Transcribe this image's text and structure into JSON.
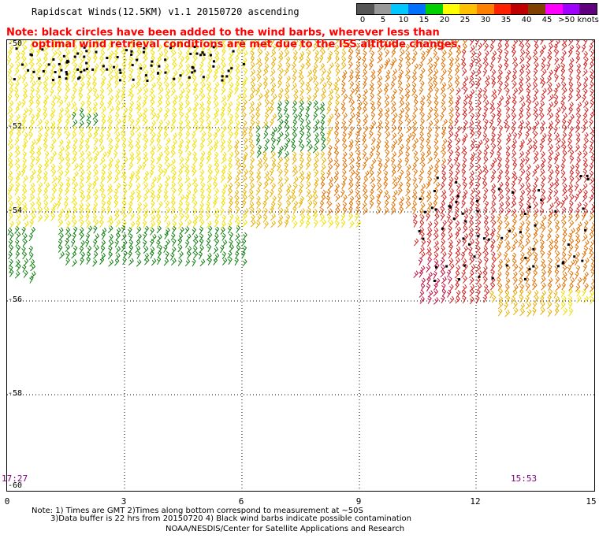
{
  "header": {
    "title": "Rapidscat Winds(12.5KM) v1.1 20150720 ascending"
  },
  "red_note": {
    "line1": "Note: black circles have been added to the wind barbs, wherever less than",
    "line2": "optimal wind retrieval conditions are met due to the ISS altitude changes."
  },
  "legend": {
    "labels": [
      "0",
      "5",
      "10",
      "15",
      "20",
      "25",
      "30",
      "35",
      "40",
      "45",
      ">50 knots"
    ],
    "colors": [
      "#555555",
      "#999999",
      "#00c8ff",
      "#0070ff",
      "#00d000",
      "#ffff00",
      "#ffc000",
      "#ff8000",
      "#ff2000",
      "#c00000",
      "#804000",
      "#ff00ff",
      "#a000ff",
      "#600080"
    ]
  },
  "map": {
    "lat_labels": [
      "-50",
      "-52",
      "-54",
      "-56",
      "-58",
      "-60"
    ],
    "lon_labels": [
      "0",
      "3",
      "6",
      "9",
      "12",
      "15"
    ],
    "time_left": "17:27",
    "time_right": "15:53",
    "barb_colors": {
      "yellow": "#f0e000",
      "gold": "#e8b000",
      "orange": "#e07000",
      "red": "#d02020",
      "crimson": "#c01040",
      "green": "#108010",
      "black": "#000000"
    }
  },
  "footer": {
    "line1": "Note: 1) Times are GMT 2)Times along bottom correspond to measurement at ~50S",
    "line2": "3)Data buffer is 22 hrs from 20150720 4) Black wind barbs indicate possible contamination",
    "line3": "NOAA/NESDIS/Center for Satellite Applications and Research"
  }
}
